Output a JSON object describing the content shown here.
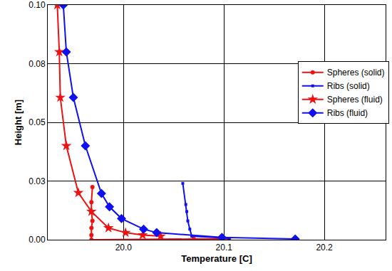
{
  "chart_data": {
    "type": "line",
    "x_label": "Temperature [C]",
    "y_label": "Height [m]",
    "xlim": [
      19.9245,
      20.261
    ],
    "xticks": [
      {
        "value": 20.0,
        "label": "20.0"
      },
      20.1,
      20.2
    ],
    "ylim": [
      0,
      0.1
    ],
    "yticks": [
      {
        "value": 0,
        "label": "0.00"
      },
      {
        "value": 0.025,
        "label": "0.03"
      },
      0.05,
      {
        "value": 0.075,
        "label": "0.08"
      },
      {
        "value": 0.1,
        "label": "0.10"
      }
    ],
    "grid": true,
    "legend": "right",
    "series": [
      {
        "name": "Spheres (solid)",
        "color": "#ee1111",
        "marker": "circle",
        "x": [
          19.969,
          19.968,
          19.968,
          19.969,
          19.968,
          19.968,
          19.968,
          20.07,
          20.105
        ],
        "values": [
          0.0224,
          0.016,
          0.012,
          0.008,
          0.005,
          0.002,
          0.0,
          0.0003,
          0.0003
        ]
      },
      {
        "name": "Ribs (solid)",
        "color": "#1010ee",
        "marker": "square",
        "x": [
          20.059,
          20.062,
          20.063,
          20.064,
          20.066,
          20.068,
          20.105
        ],
        "values": [
          0.024,
          0.015,
          0.012,
          0.008,
          0.0045,
          0.0015,
          0.0006
        ]
      },
      {
        "name": "Spheres (fluid)",
        "color": "#ee1111",
        "marker": "star",
        "x": [
          19.934,
          19.936,
          19.937,
          19.943,
          19.955,
          19.968,
          19.985,
          20.002,
          20.019,
          20.037
        ],
        "values": [
          0.1,
          0.08,
          0.0606,
          0.04,
          0.02,
          0.012,
          0.005,
          0.003,
          0.002,
          0.0015
        ]
      },
      {
        "name": "Ribs (fluid)",
        "color": "#1010ee",
        "marker": "diamond",
        "x": [
          19.94,
          19.943,
          19.95,
          19.962,
          19.978,
          19.986,
          19.998,
          20.02,
          20.033,
          20.098,
          20.171
        ],
        "values": [
          0.1,
          0.08,
          0.0606,
          0.04,
          0.0197,
          0.014,
          0.009,
          0.0045,
          0.003,
          0.001,
          0.0003
        ]
      }
    ]
  }
}
